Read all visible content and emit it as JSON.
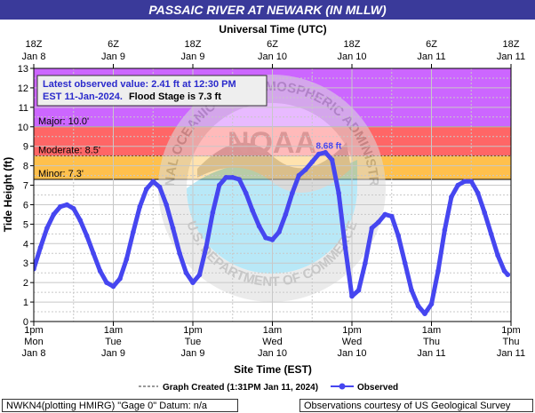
{
  "chart_data": {
    "type": "line",
    "title": "PASSAIC RIVER AT NEWARK (IN MLLW)",
    "top_axis_title": "Universal Time (UTC)",
    "xlabel": "Site Time (EST)",
    "ylabel": "Tide Height (ft)",
    "ylim": [
      0,
      13
    ],
    "y_ticks": [
      0,
      1,
      2,
      3,
      4,
      5,
      6,
      7,
      8,
      9,
      10,
      11,
      12,
      13
    ],
    "xlim": [
      "2024-01-08 13:00",
      "2024-01-11 13:00"
    ],
    "grid": true,
    "bottom_ticks": [
      {
        "line1": "1pm",
        "line2": "Mon",
        "line3": "Jan 8"
      },
      {
        "line1": "1am",
        "line2": "Tue",
        "line3": "Jan 9"
      },
      {
        "line1": "1pm",
        "line2": "Tue",
        "line3": "Jan 9"
      },
      {
        "line1": "1am",
        "line2": "Wed",
        "line3": "Jan 10"
      },
      {
        "line1": "1pm",
        "line2": "Wed",
        "line3": "Jan 10"
      },
      {
        "line1": "1am",
        "line2": "Thu",
        "line3": "Jan 11"
      },
      {
        "line1": "1pm",
        "line2": "Thu",
        "line3": "Jan 11"
      }
    ],
    "top_ticks": [
      {
        "line1": "18Z",
        "line2": "Jan 8"
      },
      {
        "line1": "6Z",
        "line2": "Jan 9"
      },
      {
        "line1": "18Z",
        "line2": "Jan 9"
      },
      {
        "line1": "6Z",
        "line2": "Jan 10"
      },
      {
        "line1": "18Z",
        "line2": "Jan 10"
      },
      {
        "line1": "6Z",
        "line2": "Jan 11"
      },
      {
        "line1": "18Z",
        "line2": "Jan 11"
      }
    ],
    "flood_categories": [
      {
        "label": "Major: 10.0'",
        "min": 10.0,
        "max": 13.0,
        "color": "#cc66ff"
      },
      {
        "label": "Moderate: 8.5'",
        "min": 8.5,
        "max": 10.0,
        "color": "#ff6666"
      },
      {
        "label": "Minor: 7.3'",
        "min": 7.3,
        "max": 8.5,
        "color": "#ffc04c"
      }
    ],
    "annotation": {
      "line1": "Latest observed value: 2.41 ft at 12:30 PM",
      "line2a": "EST 11-Jan-2024.",
      "line2b": "Flood Stage is 7.3 ft"
    },
    "peak_label": {
      "text": "8.68 ft",
      "x": "2024-01-10 09:30",
      "y": 8.68
    },
    "series": [
      {
        "name": "Observed",
        "color": "#4646f0",
        "points": [
          [
            "2024-01-08 13:00",
            2.7
          ],
          [
            "2024-01-08 14:00",
            3.8
          ],
          [
            "2024-01-08 15:00",
            4.8
          ],
          [
            "2024-01-08 16:00",
            5.5
          ],
          [
            "2024-01-08 17:00",
            5.9
          ],
          [
            "2024-01-08 18:00",
            6.0
          ],
          [
            "2024-01-08 19:00",
            5.8
          ],
          [
            "2024-01-08 20:00",
            5.2
          ],
          [
            "2024-01-08 21:00",
            4.4
          ],
          [
            "2024-01-08 22:00",
            3.5
          ],
          [
            "2024-01-08 23:00",
            2.6
          ],
          [
            "2024-01-09 00:00",
            2.0
          ],
          [
            "2024-01-09 01:00",
            1.8
          ],
          [
            "2024-01-09 02:00",
            2.2
          ],
          [
            "2024-01-09 03:00",
            3.2
          ],
          [
            "2024-01-09 04:00",
            4.6
          ],
          [
            "2024-01-09 05:00",
            5.9
          ],
          [
            "2024-01-09 06:00",
            6.8
          ],
          [
            "2024-01-09 07:00",
            7.2
          ],
          [
            "2024-01-09 08:00",
            6.9
          ],
          [
            "2024-01-09 09:00",
            6.0
          ],
          [
            "2024-01-09 10:00",
            4.8
          ],
          [
            "2024-01-09 11:00",
            3.5
          ],
          [
            "2024-01-09 12:00",
            2.5
          ],
          [
            "2024-01-09 13:00",
            2.0
          ],
          [
            "2024-01-09 14:00",
            2.4
          ],
          [
            "2024-01-09 15:00",
            3.8
          ],
          [
            "2024-01-09 16:00",
            5.6
          ],
          [
            "2024-01-09 17:00",
            7.0
          ],
          [
            "2024-01-09 18:00",
            7.4
          ],
          [
            "2024-01-09 19:00",
            7.4
          ],
          [
            "2024-01-09 20:00",
            7.3
          ],
          [
            "2024-01-09 21:00",
            6.6
          ],
          [
            "2024-01-09 22:00",
            5.7
          ],
          [
            "2024-01-09 23:00",
            4.9
          ],
          [
            "2024-01-10 00:00",
            4.3
          ],
          [
            "2024-01-10 01:00",
            4.2
          ],
          [
            "2024-01-10 02:00",
            4.6
          ],
          [
            "2024-01-10 03:00",
            5.5
          ],
          [
            "2024-01-10 04:00",
            6.6
          ],
          [
            "2024-01-10 05:00",
            7.5
          ],
          [
            "2024-01-10 06:00",
            7.8
          ],
          [
            "2024-01-10 07:00",
            8.2
          ],
          [
            "2024-01-10 08:00",
            8.6
          ],
          [
            "2024-01-10 09:00",
            8.68
          ],
          [
            "2024-01-10 10:00",
            8.3
          ],
          [
            "2024-01-10 11:00",
            6.6
          ],
          [
            "2024-01-10 12:00",
            3.8
          ],
          [
            "2024-01-10 13:00",
            1.3
          ],
          [
            "2024-01-10 14:00",
            1.6
          ],
          [
            "2024-01-10 15:00",
            3.0
          ],
          [
            "2024-01-10 16:00",
            4.8
          ],
          [
            "2024-01-10 17:00",
            5.1
          ],
          [
            "2024-01-10 18:00",
            5.5
          ],
          [
            "2024-01-10 19:00",
            5.4
          ],
          [
            "2024-01-10 20:00",
            4.4
          ],
          [
            "2024-01-10 21:00",
            3.0
          ],
          [
            "2024-01-10 22:00",
            1.6
          ],
          [
            "2024-01-10 23:00",
            0.8
          ],
          [
            "2024-01-11 00:00",
            0.4
          ],
          [
            "2024-01-11 01:00",
            0.9
          ],
          [
            "2024-01-11 02:00",
            2.6
          ],
          [
            "2024-01-11 03:00",
            4.7
          ],
          [
            "2024-01-11 04:00",
            6.4
          ],
          [
            "2024-01-11 05:00",
            7.0
          ],
          [
            "2024-01-11 06:00",
            7.2
          ],
          [
            "2024-01-11 07:00",
            7.2
          ],
          [
            "2024-01-11 08:00",
            6.6
          ],
          [
            "2024-01-11 09:00",
            5.6
          ],
          [
            "2024-01-11 10:00",
            4.5
          ],
          [
            "2024-01-11 11:00",
            3.4
          ],
          [
            "2024-01-11 12:00",
            2.6
          ],
          [
            "2024-01-11 12:30",
            2.41
          ]
        ]
      }
    ],
    "legend": {
      "graph_created": "Graph Created (1:31PM Jan 11, 2024)",
      "observed": "Observed"
    }
  },
  "footer": {
    "left": "NWKN4(plotting HMIRG) \"Gage 0\" Datum: n/a",
    "right": "Observations courtesy of US Geological Survey"
  },
  "watermark": {
    "text": "NOAA",
    "ring_text": "NATIONAL OCEANIC AND ATMOSPHERIC ADMINISTRATION",
    "ring_text_bottom": "U.S. DEPARTMENT OF COMMERCE"
  }
}
